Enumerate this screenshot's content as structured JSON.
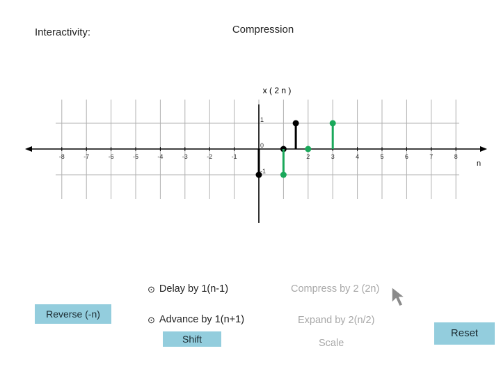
{
  "header": {
    "interactivity_label": "Interactivity:",
    "mode_title": "Compression"
  },
  "colors": {
    "axis": "#000000",
    "grid": "#b0b0b0",
    "original_signal": "#000000",
    "compressed_signal": "#1aa85a",
    "button_bg": "#93cddd",
    "disabled_text": "#a8a8a8"
  },
  "chart_data": {
    "type": "stem",
    "title": "x ( 2 n )",
    "xlabel": "n",
    "xlim": [
      -8.5,
      8.8
    ],
    "ylim": [
      -1.4,
      1.5
    ],
    "x_ticks": [
      "-8",
      "-7",
      "-6",
      "-5",
      "-4",
      "-3",
      "-2",
      "-1",
      "",
      "",
      "2",
      "3",
      "4",
      "5",
      "6",
      "7",
      "8"
    ],
    "y_ticks": [
      {
        "value": 1,
        "label": "1"
      },
      {
        "value": 0,
        "label": "0"
      },
      {
        "value": -1,
        "label": "-1"
      }
    ],
    "series": [
      {
        "points": [
          {
            "x": 0,
            "y": -1
          },
          {
            "x": 1,
            "y": 0
          },
          {
            "x": 1.5,
            "y": 1
          }
        ]
      },
      {
        "points": [
          {
            "x": 1,
            "y": -1
          },
          {
            "x": 2,
            "y": 0
          },
          {
            "x": 3,
            "y": 1
          }
        ]
      }
    ]
  },
  "controls": {
    "reverse_label": "Reverse (-n)",
    "delay_label": "Delay by 1(n-1)",
    "advance_label": "Advance by 1(n+1)",
    "shift_label": "Shift",
    "compress_label": "Compress by 2 (2n)",
    "expand_label": "Expand by 2(n/2)",
    "scale_label": "Scale",
    "reset_label": "Reset",
    "radio_icon": "⊙"
  }
}
